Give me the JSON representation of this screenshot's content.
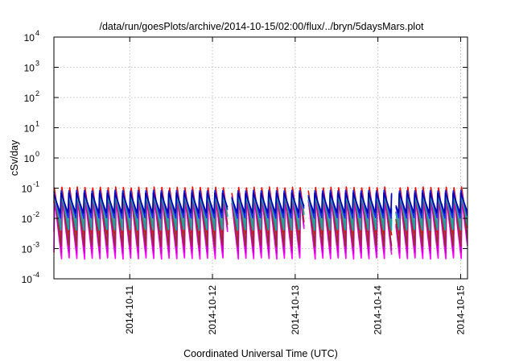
{
  "chart_data": {
    "type": "line",
    "title": "/data/run/goesPlots/archive/2014-10-15/02:00/flux/../bryn/5daysMars.plot",
    "xlabel": "Coordinated Universal Time (UTC)",
    "ylabel": "cSv/day",
    "y_scale": "log",
    "ylim": [
      0.0001,
      10000
    ],
    "xlim": [
      "2014-10-10 02:00",
      "2014-10-15 02:00"
    ],
    "grid": true,
    "legend": "none",
    "y_ticks": [
      {
        "base": "10",
        "exp": "-4"
      },
      {
        "base": "10",
        "exp": "-3"
      },
      {
        "base": "10",
        "exp": "-2"
      },
      {
        "base": "10",
        "exp": "-1"
      },
      {
        "base": "10",
        "exp": "0"
      },
      {
        "base": "10",
        "exp": "1"
      },
      {
        "base": "10",
        "exp": "2"
      },
      {
        "base": "10",
        "exp": "3"
      },
      {
        "base": "10",
        "exp": "4"
      }
    ],
    "x_ticks": [
      "2014-10-11",
      "2014-10-12",
      "2014-10-13",
      "2014-10-14",
      "2014-10-15"
    ],
    "period_hours": 2.23,
    "series": [
      {
        "color": "#ff00ff",
        "peak": 0.045,
        "trough": 0.00045
      },
      {
        "color": "#cc00cc",
        "peak": 0.05,
        "trough": 0.0007
      },
      {
        "color": "#ff0000",
        "peak": 0.11,
        "trough": 0.0025
      },
      {
        "color": "#9b2c2c",
        "peak": 0.09,
        "trough": 0.0012
      },
      {
        "color": "#00b0b0",
        "peak": 0.075,
        "trough": 0.004
      },
      {
        "color": "#2c9b9b",
        "peak": 0.06,
        "trough": 0.006
      },
      {
        "color": "#2020ff",
        "peak": 0.085,
        "trough": 0.01
      },
      {
        "color": "#0000aa",
        "peak": 0.07,
        "trough": 0.015
      }
    ]
  }
}
